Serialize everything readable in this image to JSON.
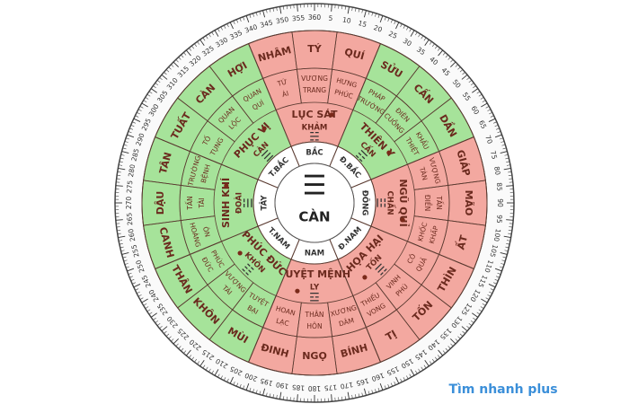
{
  "compass": {
    "center": {
      "label": "CÀN",
      "symbol": "☰"
    },
    "degree_labels": [
      5,
      10,
      15,
      20,
      25,
      30,
      35,
      40,
      45,
      50,
      55,
      60,
      65,
      70,
      75,
      80,
      85,
      90,
      95,
      100,
      105,
      110,
      115,
      120,
      125,
      130,
      135,
      140,
      145,
      150,
      155,
      160,
      165,
      170,
      175,
      180,
      185,
      190,
      195,
      200,
      205,
      210,
      215,
      220,
      225,
      230,
      235,
      240,
      245,
      250,
      255,
      260,
      265,
      270,
      275,
      280,
      285,
      290,
      295,
      300,
      305,
      310,
      315,
      320,
      325,
      330,
      335,
      340,
      345,
      350,
      355,
      360
    ],
    "sectors": [
      {
        "direction": "BẮC",
        "star": "LỤC SÁT",
        "trigram": "KHẢM",
        "symbol": "☵",
        "fill": "#f3a8a0",
        "mountains": [
          "NHÂM",
          "TÝ",
          "QUÍ"
        ],
        "subs": [
          [
            "TỨ",
            "ÁI"
          ],
          [
            "VƯƠNG",
            "TRANG"
          ],
          [
            "HƯNG",
            "PHÚC"
          ]
        ]
      },
      {
        "direction": "Đ.BẮC",
        "star": "THIÊN Y",
        "trigram": "CẤN",
        "symbol": "☶",
        "fill": "#a6e39a",
        "mountains": [
          "SỬU",
          "CẤN",
          "DẦN"
        ],
        "subs": [
          [
            "PHÁP",
            "TRƯỜNG"
          ],
          [
            "ĐIÊN",
            "CUỒNG"
          ],
          [
            "KHẨU",
            "THIỆT"
          ]
        ]
      },
      {
        "direction": "ĐÔNG",
        "star": "NGŨ QUỈ",
        "trigram": "CHẤN",
        "symbol": "☳",
        "fill": "#f3a8a0",
        "mountains": [
          "GIÁP",
          "MÃO",
          "ẤT"
        ],
        "subs": [
          [
            "VƯỢNG",
            "TÀN"
          ],
          [
            "TẤN",
            "ĐIỀN"
          ],
          [
            "KHỐC",
            "KHẤP"
          ]
        ]
      },
      {
        "direction": "Đ.NAM",
        "star": "HỌA HẠI",
        "trigram": "TỐN",
        "symbol": "☴",
        "fill": "#f3a8a0",
        "mountains": [
          "THÌN",
          "TỐN",
          "TỊ"
        ],
        "subs": [
          [
            "CÔ",
            "QUẢ"
          ],
          [
            "VINH",
            "PHÚ"
          ],
          [
            "THIẾU",
            "VONG"
          ]
        ]
      },
      {
        "direction": "NAM",
        "star": "TUYỆT MỆNH",
        "trigram": "LY",
        "symbol": "☲",
        "fill": "#f3a8a0",
        "mountains": [
          "BÍNH",
          "NGỌ",
          "ĐINH"
        ],
        "subs": [
          [
            "XƯƠNG",
            "DÂM"
          ],
          [
            "THÂN",
            "HÔN"
          ],
          [
            "HOAN",
            "LẠC"
          ]
        ]
      },
      {
        "direction": "T.NAM",
        "star": "PHÚC ĐỨC",
        "trigram": "KHÔN",
        "symbol": "☷",
        "fill": "#a6e39a",
        "mountains": [
          "MÙI",
          "KHÔN",
          "THÂN"
        ],
        "subs": [
          [
            "TUYỆT",
            "BẠI"
          ],
          [
            "VƯỢNG",
            "TÀI"
          ],
          [
            "PHÚC",
            "ĐỨC"
          ]
        ]
      },
      {
        "direction": "TÂY",
        "star": "SINH KHÍ",
        "trigram": "ĐOÀI",
        "symbol": "☱",
        "fill": "#a6e39a",
        "mountains": [
          "CANH",
          "DẬU",
          "TÂN"
        ],
        "subs": [
          [
            "ÔN",
            "HOÀNG"
          ],
          [
            "TẤN",
            "TÀI"
          ],
          [
            "TRƯỜNG",
            "BỆNH"
          ]
        ]
      },
      {
        "direction": "T.BẮC",
        "star": "PHỤC VỊ",
        "trigram": "CÀN",
        "symbol": "☰",
        "fill": "#a6e39a",
        "mountains": [
          "TUẤT",
          "CÀN",
          "HỢI"
        ],
        "subs": [
          [
            "TỐ",
            "TỤNG"
          ],
          [
            "QUAN",
            "LỘC"
          ],
          [
            "QUAN",
            "QUÍ"
          ]
        ]
      }
    ]
  },
  "watermark": "Tìm nhanh plus"
}
